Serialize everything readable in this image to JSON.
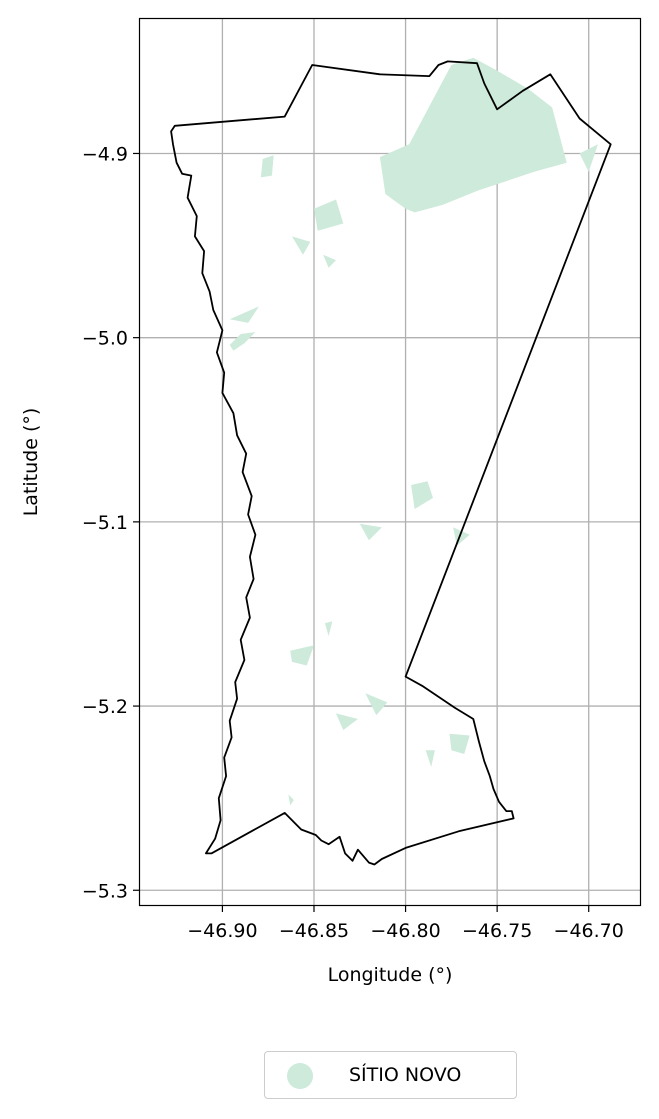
{
  "chart_data": {
    "type": "map",
    "xlabel": "Longitude (°)",
    "ylabel": "Latitude (°)",
    "xlim": [
      -46.945,
      -46.672
    ],
    "ylim": [
      -5.308,
      -4.827
    ],
    "xticks": [
      -46.9,
      -46.85,
      -46.8,
      -46.75,
      -46.7
    ],
    "xtick_labels": [
      "−46.90",
      "−46.85",
      "−46.80",
      "−46.75",
      "−46.70"
    ],
    "yticks": [
      -4.9,
      -5.0,
      -5.1,
      -5.2,
      -5.3
    ],
    "ytick_labels": [
      "−4.9",
      "−5.0",
      "−5.1",
      "−5.2",
      "−5.3"
    ],
    "grid": true,
    "legend_position": "bottom-center",
    "boundary_color": "#000000",
    "fill_color": "#cdeadb",
    "legend": [
      {
        "label": "SÍTIO NOVO",
        "color": "#cdeadb"
      }
    ],
    "boundary": [
      [
        -46.851,
        -4.852
      ],
      [
        -46.814,
        -4.857
      ],
      [
        -46.787,
        -4.858
      ],
      [
        -46.782,
        -4.852
      ],
      [
        -46.777,
        -4.85
      ],
      [
        -46.761,
        -4.851
      ],
      [
        -46.757,
        -4.862
      ],
      [
        -46.75,
        -4.876
      ],
      [
        -46.736,
        -4.866
      ],
      [
        -46.721,
        -4.857
      ],
      [
        -46.705,
        -4.881
      ],
      [
        -46.688,
        -4.895
      ],
      [
        -46.8,
        -5.184
      ],
      [
        -46.791,
        -5.189
      ],
      [
        -46.773,
        -5.201
      ],
      [
        -46.763,
        -5.207
      ],
      [
        -46.76,
        -5.219
      ],
      [
        -46.757,
        -5.23
      ],
      [
        -46.754,
        -5.238
      ],
      [
        -46.752,
        -5.245
      ],
      [
        -46.749,
        -5.252
      ],
      [
        -46.745,
        -5.257
      ],
      [
        -46.742,
        -5.257
      ],
      [
        -46.741,
        -5.261
      ],
      [
        -46.771,
        -5.268
      ],
      [
        -46.8,
        -5.277
      ],
      [
        -46.813,
        -5.283
      ],
      [
        -46.817,
        -5.286
      ],
      [
        -46.82,
        -5.285
      ],
      [
        -46.826,
        -5.278
      ],
      [
        -46.829,
        -5.284
      ],
      [
        -46.833,
        -5.28
      ],
      [
        -46.836,
        -5.271
      ],
      [
        -46.842,
        -5.275
      ],
      [
        -46.846,
        -5.273
      ],
      [
        -46.849,
        -5.27
      ],
      [
        -46.857,
        -5.267
      ],
      [
        -46.866,
        -5.258
      ],
      [
        -46.906,
        -5.28
      ],
      [
        -46.909,
        -5.28
      ],
      [
        -46.904,
        -5.272
      ],
      [
        -46.901,
        -5.262
      ],
      [
        -46.902,
        -5.25
      ],
      [
        -46.898,
        -5.238
      ],
      [
        -46.899,
        -5.228
      ],
      [
        -46.895,
        -5.217
      ],
      [
        -46.896,
        -5.208
      ],
      [
        -46.892,
        -5.196
      ],
      [
        -46.893,
        -5.187
      ],
      [
        -46.888,
        -5.175
      ],
      [
        -46.89,
        -5.164
      ],
      [
        -46.885,
        -5.152
      ],
      [
        -46.887,
        -5.141
      ],
      [
        -46.883,
        -5.131
      ],
      [
        -46.885,
        -5.119
      ],
      [
        -46.882,
        -5.107
      ],
      [
        -46.886,
        -5.096
      ],
      [
        -46.884,
        -5.086
      ],
      [
        -46.889,
        -5.073
      ],
      [
        -46.887,
        -5.063
      ],
      [
        -46.892,
        -5.053
      ],
      [
        -46.894,
        -5.041
      ],
      [
        -46.9,
        -5.03
      ],
      [
        -46.899,
        -5.019
      ],
      [
        -46.903,
        -5.008
      ],
      [
        -46.9,
        -4.996
      ],
      [
        -46.905,
        -4.985
      ],
      [
        -46.907,
        -4.975
      ],
      [
        -46.911,
        -4.965
      ],
      [
        -46.91,
        -4.953
      ],
      [
        -46.915,
        -4.945
      ],
      [
        -46.914,
        -4.934
      ],
      [
        -46.919,
        -4.924
      ],
      [
        -46.917,
        -4.912
      ],
      [
        -46.922,
        -4.911
      ],
      [
        -46.925,
        -4.905
      ],
      [
        -46.927,
        -4.895
      ],
      [
        -46.928,
        -4.888
      ],
      [
        -46.926,
        -4.885
      ],
      [
        -46.866,
        -4.88
      ]
    ],
    "features": [
      [
        [
          -46.763,
          -4.848
        ],
        [
          -46.75,
          -4.855
        ],
        [
          -46.733,
          -4.865
        ],
        [
          -46.72,
          -4.875
        ],
        [
          -46.712,
          -4.905
        ],
        [
          -46.73,
          -4.91
        ],
        [
          -46.76,
          -4.92
        ],
        [
          -46.78,
          -4.928
        ],
        [
          -46.795,
          -4.932
        ],
        [
          -46.8,
          -4.93
        ],
        [
          -46.811,
          -4.922
        ],
        [
          -46.814,
          -4.902
        ],
        [
          -46.798,
          -4.895
        ],
        [
          -46.79,
          -4.88
        ],
        [
          -46.782,
          -4.865
        ],
        [
          -46.775,
          -4.852
        ]
      ],
      [
        [
          -46.705,
          -4.9
        ],
        [
          -46.695,
          -4.895
        ],
        [
          -46.7,
          -4.91
        ]
      ],
      [
        [
          -46.878,
          -4.903
        ],
        [
          -46.872,
          -4.901
        ],
        [
          -46.873,
          -4.912
        ],
        [
          -46.879,
          -4.913
        ]
      ],
      [
        [
          -46.85,
          -4.93
        ],
        [
          -46.838,
          -4.925
        ],
        [
          -46.834,
          -4.938
        ],
        [
          -46.848,
          -4.942
        ]
      ],
      [
        [
          -46.862,
          -4.945
        ],
        [
          -46.852,
          -4.948
        ],
        [
          -46.856,
          -4.955
        ]
      ],
      [
        [
          -46.845,
          -4.955
        ],
        [
          -46.838,
          -4.958
        ],
        [
          -46.842,
          -4.962
        ]
      ],
      [
        [
          -46.88,
          -4.983
        ],
        [
          -46.896,
          -4.99
        ],
        [
          -46.886,
          -4.992
        ]
      ],
      [
        [
          -46.882,
          -4.997
        ],
        [
          -46.89,
          -4.998
        ],
        [
          -46.896,
          -5.004
        ],
        [
          -46.894,
          -5.007
        ],
        [
          -46.888,
          -5.003
        ]
      ],
      [
        [
          -46.797,
          -5.08
        ],
        [
          -46.788,
          -5.078
        ],
        [
          -46.785,
          -5.087
        ],
        [
          -46.795,
          -5.093
        ]
      ],
      [
        [
          -46.825,
          -5.101
        ],
        [
          -46.813,
          -5.103
        ],
        [
          -46.82,
          -5.11
        ]
      ],
      [
        [
          -46.774,
          -5.103
        ],
        [
          -46.765,
          -5.107
        ],
        [
          -46.772,
          -5.113
        ]
      ],
      [
        [
          -46.844,
          -5.155
        ],
        [
          -46.84,
          -5.154
        ],
        [
          -46.842,
          -5.162
        ]
      ],
      [
        [
          -46.863,
          -5.17
        ],
        [
          -46.85,
          -5.167
        ],
        [
          -46.854,
          -5.178
        ],
        [
          -46.862,
          -5.176
        ]
      ],
      [
        [
          -46.822,
          -5.193
        ],
        [
          -46.81,
          -5.198
        ],
        [
          -46.816,
          -5.205
        ]
      ],
      [
        [
          -46.838,
          -5.204
        ],
        [
          -46.826,
          -5.207
        ],
        [
          -46.834,
          -5.213
        ]
      ],
      [
        [
          -46.776,
          -5.215
        ],
        [
          -46.765,
          -5.216
        ],
        [
          -46.768,
          -5.226
        ],
        [
          -46.775,
          -5.224
        ]
      ],
      [
        [
          -46.789,
          -5.224
        ],
        [
          -46.784,
          -5.224
        ],
        [
          -46.786,
          -5.233
        ]
      ],
      [
        [
          -46.864,
          -5.248
        ],
        [
          -46.861,
          -5.251
        ],
        [
          -46.863,
          -5.254
        ]
      ]
    ]
  }
}
